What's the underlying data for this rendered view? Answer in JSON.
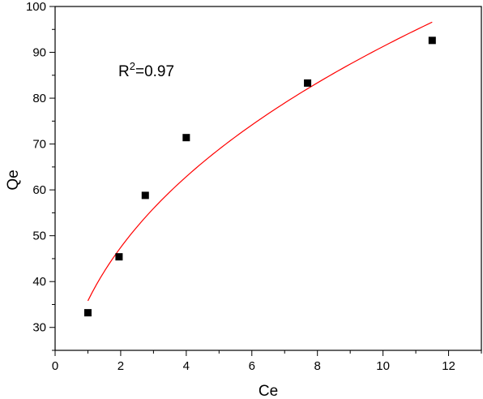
{
  "chart_data": {
    "type": "scatter",
    "title": "",
    "xlabel": "Ce",
    "ylabel": "Qe",
    "xlim": [
      0,
      13
    ],
    "ylim": [
      25,
      100
    ],
    "x_ticks": [
      0,
      2,
      4,
      6,
      8,
      10,
      12
    ],
    "y_ticks": [
      30,
      40,
      50,
      60,
      70,
      80,
      90,
      100
    ],
    "grid": false,
    "legend": "none",
    "series": [
      {
        "kind": "scatter",
        "marker": "square",
        "color": "#000000",
        "points": [
          {
            "x": 1.0,
            "y": 33.2
          },
          {
            "x": 1.95,
            "y": 45.4
          },
          {
            "x": 2.75,
            "y": 58.8
          },
          {
            "x": 4.0,
            "y": 71.4
          },
          {
            "x": 7.7,
            "y": 83.3
          },
          {
            "x": 11.5,
            "y": 92.6
          }
        ]
      },
      {
        "kind": "fit-line",
        "color": "#ff0000",
        "model": "power",
        "coefficient": 35.8,
        "exponent": 0.4064,
        "x_range": [
          1.0,
          11.5
        ]
      }
    ],
    "annotation": {
      "base": "R",
      "superscript": "2",
      "rest": "=0.97"
    }
  }
}
